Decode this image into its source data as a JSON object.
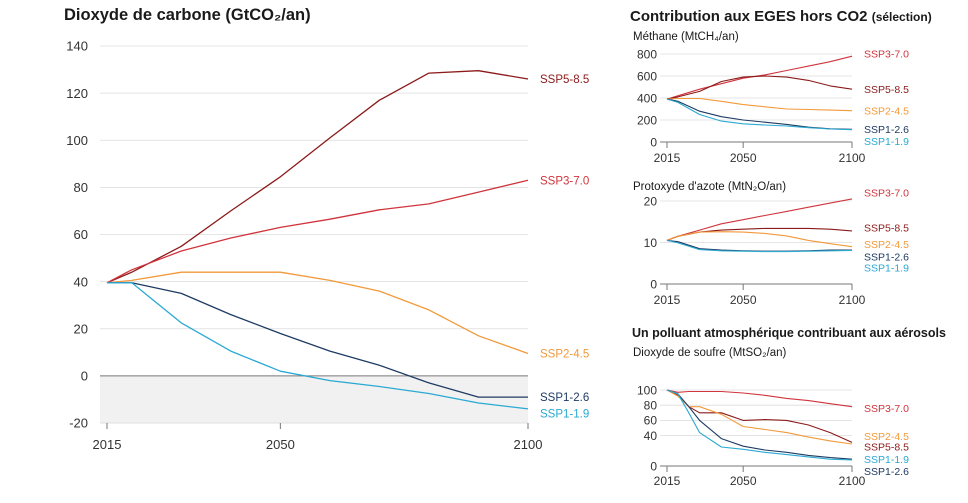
{
  "titles": {
    "main": "Dioxyde de carbone (GtCO₂/an)",
    "right": "Contribution aux EGES hors CO2",
    "right_note": "(sélection)",
    "aerosol": "Un polluant atmosphérique contribuant aux aérosols"
  },
  "colors": {
    "SSP5-8.5": "#8b1a1a",
    "SSP3-7.0": "#d0343c",
    "SSP2-4.5": "#f2993a",
    "SSP1-2.6": "#1f3b63",
    "SSP1-1.9": "#2aa9d2",
    "grid": "#dcdcdc",
    "axis": "#777777",
    "negative_shade": "#f1f1f1"
  },
  "chart_data": [
    {
      "id": "co2",
      "type": "line",
      "title": "Dioxyde de carbone (GtCO₂/an)",
      "x": [
        2015,
        2020,
        2030,
        2040,
        2050,
        2060,
        2070,
        2080,
        2090,
        2100
      ],
      "xticks": [
        "2015",
        "2050",
        "2100"
      ],
      "xlim": [
        2015,
        2100
      ],
      "ylim": [
        -20,
        140
      ],
      "yticks": [
        -20,
        0,
        20,
        40,
        60,
        80,
        100,
        120,
        140
      ],
      "grid": true,
      "shade_below_zero": true,
      "series": [
        {
          "name": "SSP5-8.5",
          "values": [
            39.5,
            44,
            55,
            70,
            84.5,
            101,
            117,
            128.5,
            129.5,
            126
          ]
        },
        {
          "name": "SSP3-7.0",
          "values": [
            39.5,
            45,
            53,
            58.5,
            63,
            66.5,
            70.5,
            73,
            78,
            83
          ]
        },
        {
          "name": "SSP2-4.5",
          "values": [
            39.5,
            40.5,
            44,
            44,
            44,
            40.5,
            36,
            28,
            17,
            9.5
          ]
        },
        {
          "name": "SSP1-2.6",
          "values": [
            39.5,
            39.5,
            35,
            26,
            18,
            10.5,
            4.5,
            -3,
            -9,
            -9
          ]
        },
        {
          "name": "SSP1-1.9",
          "values": [
            39.5,
            39.5,
            22.5,
            10.5,
            2,
            -2,
            -4.5,
            -7.5,
            -11.5,
            -14
          ]
        }
      ],
      "labels": [
        {
          "series": "SSP5-8.5",
          "text": "SSP5-8.5",
          "y": 126
        },
        {
          "series": "SSP3-7.0",
          "text": "SSP3-7.0",
          "y": 83
        },
        {
          "series": "SSP2-4.5",
          "text": "SSP2-4.5",
          "y": 9.5
        },
        {
          "series": "SSP1-2.6",
          "text": "SSP1-2.6",
          "y": -9
        },
        {
          "series": "SSP1-1.9",
          "text": "SSP1-1.9",
          "y": -16
        }
      ]
    },
    {
      "id": "ch4",
      "type": "line",
      "title": "Méthane (MtCH₄/an)",
      "x": [
        2015,
        2020,
        2030,
        2040,
        2050,
        2060,
        2070,
        2080,
        2090,
        2100
      ],
      "xticks": [
        "2015",
        "2050",
        "2100"
      ],
      "xlim": [
        2015,
        2100
      ],
      "ylim": [
        0,
        800
      ],
      "yticks": [
        0,
        200,
        400,
        600,
        800
      ],
      "grid": true,
      "series": [
        {
          "name": "SSP3-7.0",
          "values": [
            390,
            420,
            480,
            530,
            580,
            610,
            650,
            690,
            730,
            780
          ]
        },
        {
          "name": "SSP5-8.5",
          "values": [
            390,
            410,
            460,
            550,
            590,
            600,
            590,
            560,
            510,
            480
          ]
        },
        {
          "name": "SSP2-4.5",
          "values": [
            390,
            395,
            395,
            370,
            340,
            320,
            300,
            295,
            290,
            285
          ]
        },
        {
          "name": "SSP1-2.6",
          "values": [
            390,
            370,
            280,
            230,
            200,
            180,
            160,
            135,
            120,
            115
          ]
        },
        {
          "name": "SSP1-1.9",
          "values": [
            390,
            360,
            250,
            190,
            165,
            155,
            145,
            130,
            118,
            112
          ]
        }
      ],
      "labels": [
        {
          "series": "SSP3-7.0",
          "text": "SSP3-7.0",
          "y": 800
        },
        {
          "series": "SSP5-8.5",
          "text": "SSP5-8.5",
          "y": 480
        },
        {
          "series": "SSP2-4.5",
          "text": "SSP2-4.5",
          "y": 285
        },
        {
          "series": "SSP1-2.6",
          "text": "SSP1-2.6",
          "y": 115
        },
        {
          "series": "SSP1-1.9",
          "text": "SSP1-1.9",
          "y": 5
        }
      ]
    },
    {
      "id": "n2o",
      "type": "line",
      "title": "Protoxyde d'azote (MtN₂O/an)",
      "x": [
        2015,
        2020,
        2030,
        2040,
        2050,
        2060,
        2070,
        2080,
        2090,
        2100
      ],
      "xticks": [
        "2015",
        "2050",
        "2100"
      ],
      "xlim": [
        2015,
        2100
      ],
      "ylim": [
        0,
        20
      ],
      "yticks": [
        0,
        10,
        20
      ],
      "grid": true,
      "series": [
        {
          "name": "SSP3-7.0",
          "values": [
            10.5,
            11.5,
            13,
            14.5,
            15.5,
            16.5,
            17.5,
            18.5,
            19.5,
            20.5
          ]
        },
        {
          "name": "SSP5-8.5",
          "values": [
            10.5,
            11.5,
            12.5,
            13,
            13.2,
            13.4,
            13.4,
            13.4,
            13.2,
            12.8
          ]
        },
        {
          "name": "SSP2-4.5",
          "values": [
            10.5,
            11.5,
            12.5,
            12.6,
            12.5,
            12.2,
            11.6,
            10.5,
            9.7,
            9
          ]
        },
        {
          "name": "SSP1-2.6",
          "values": [
            10.5,
            10.2,
            8.5,
            8.2,
            8,
            7.9,
            7.9,
            8,
            8.2,
            8.2
          ]
        },
        {
          "name": "SSP1-1.9",
          "values": [
            10.5,
            9.9,
            8.3,
            8,
            7.9,
            7.8,
            7.8,
            7.9,
            8,
            8.1
          ]
        }
      ],
      "labels": [
        {
          "series": "SSP3-7.0",
          "text": "SSP3-7.0",
          "y": 22
        },
        {
          "series": "SSP5-8.5",
          "text": "SSP5-8.5",
          "y": 13.5
        },
        {
          "series": "SSP2-4.5",
          "text": "SSP2-4.5",
          "y": 9.6
        },
        {
          "series": "SSP1-2.6",
          "text": "SSP1-2.6",
          "y": 6.6
        },
        {
          "series": "SSP1-1.9",
          "text": "SSP1-1.9",
          "y": 3.9
        }
      ]
    },
    {
      "id": "so2",
      "type": "line",
      "title": "Dioxyde de soufre (MtSO₂/an)",
      "x": [
        2015,
        2020,
        2025,
        2030,
        2040,
        2050,
        2060,
        2070,
        2080,
        2090,
        2100
      ],
      "xticks": [
        "2015",
        "2050",
        "2100"
      ],
      "xlim": [
        2015,
        2100
      ],
      "ylim": [
        0,
        100
      ],
      "yticks": [
        0,
        40,
        60,
        80,
        100
      ],
      "grid": true,
      "series": [
        {
          "name": "SSP3-7.0",
          "values": [
            100,
            97,
            98,
            98,
            98,
            96,
            93,
            89,
            86,
            82,
            78
          ]
        },
        {
          "name": "SSP5-8.5",
          "values": [
            100,
            93,
            78,
            70,
            70,
            60,
            61,
            60,
            54,
            44,
            31
          ]
        },
        {
          "name": "SSP2-4.5",
          "values": [
            100,
            92,
            78,
            78,
            68,
            52,
            48,
            44,
            38,
            33,
            29
          ]
        },
        {
          "name": "SSP1-2.6",
          "values": [
            100,
            95,
            78,
            60,
            36,
            26,
            21,
            18,
            14,
            11,
            9
          ]
        },
        {
          "name": "SSP1-1.9",
          "values": [
            100,
            95,
            70,
            44,
            25,
            22,
            18,
            15,
            12,
            9,
            8
          ]
        }
      ],
      "labels": [
        {
          "series": "SSP3-7.0",
          "text": "SSP3-7.0",
          "y": 76
        },
        {
          "series": "SSP2-4.5",
          "text": "SSP2-4.5",
          "y": 39
        },
        {
          "series": "SSP5-8.5",
          "text": "SSP5-8.5",
          "y": 25
        },
        {
          "series": "SSP1-1.9",
          "text": "SSP1-1.9",
          "y": 9
        },
        {
          "series": "SSP1-2.6",
          "text": "SSP1-2.6",
          "y": -7
        }
      ]
    }
  ]
}
